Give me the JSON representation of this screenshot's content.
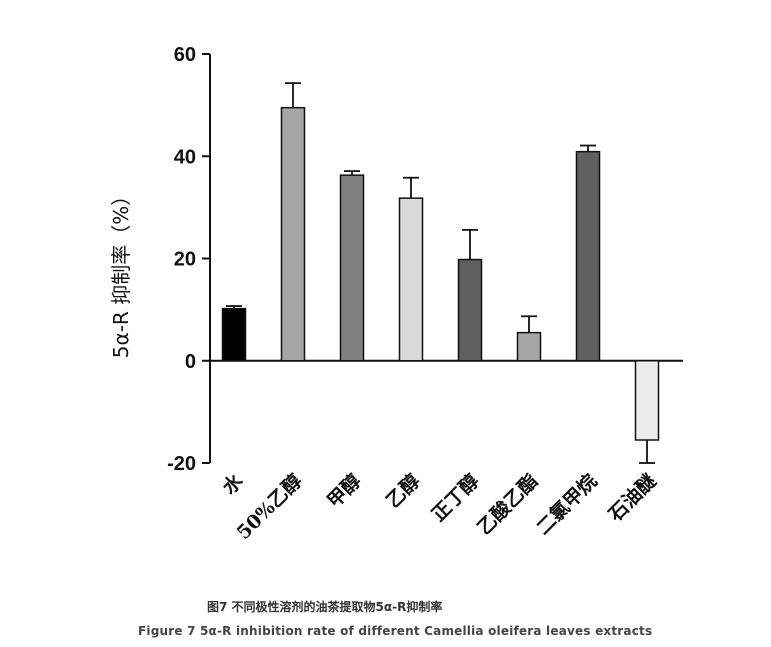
{
  "chart_data": {
    "type": "bar",
    "categories": [
      "水",
      "50%乙醇",
      "甲醇",
      "乙醇",
      "正丁醇",
      "乙酸乙酯",
      "二氯甲烷",
      "石油醚"
    ],
    "values": [
      10.2,
      49.5,
      36.3,
      31.8,
      19.8,
      5.5,
      40.9,
      -15.5
    ],
    "errors": [
      0.5,
      4.8,
      0.8,
      4.0,
      5.8,
      3.2,
      1.2,
      4.5
    ],
    "bar_colors": [
      "#000000",
      "#a6a6a6",
      "#7f7f7f",
      "#d9d9d9",
      "#5f5f5f",
      "#a6a6a6",
      "#5f5f5f",
      "#ececec"
    ],
    "ylabel": "5α-R 抑制率（%）",
    "ylim": [
      -20,
      60
    ],
    "yticks": [
      -20,
      0,
      20,
      40,
      60
    ],
    "grid": false,
    "legend": "none"
  },
  "caption": {
    "zh": "图7 不同极性溶剂的油茶提取物5α-R抑制率",
    "en": "Figure 7 5α-R inhibition rate of different Camellia oleifera leaves extracts"
  }
}
